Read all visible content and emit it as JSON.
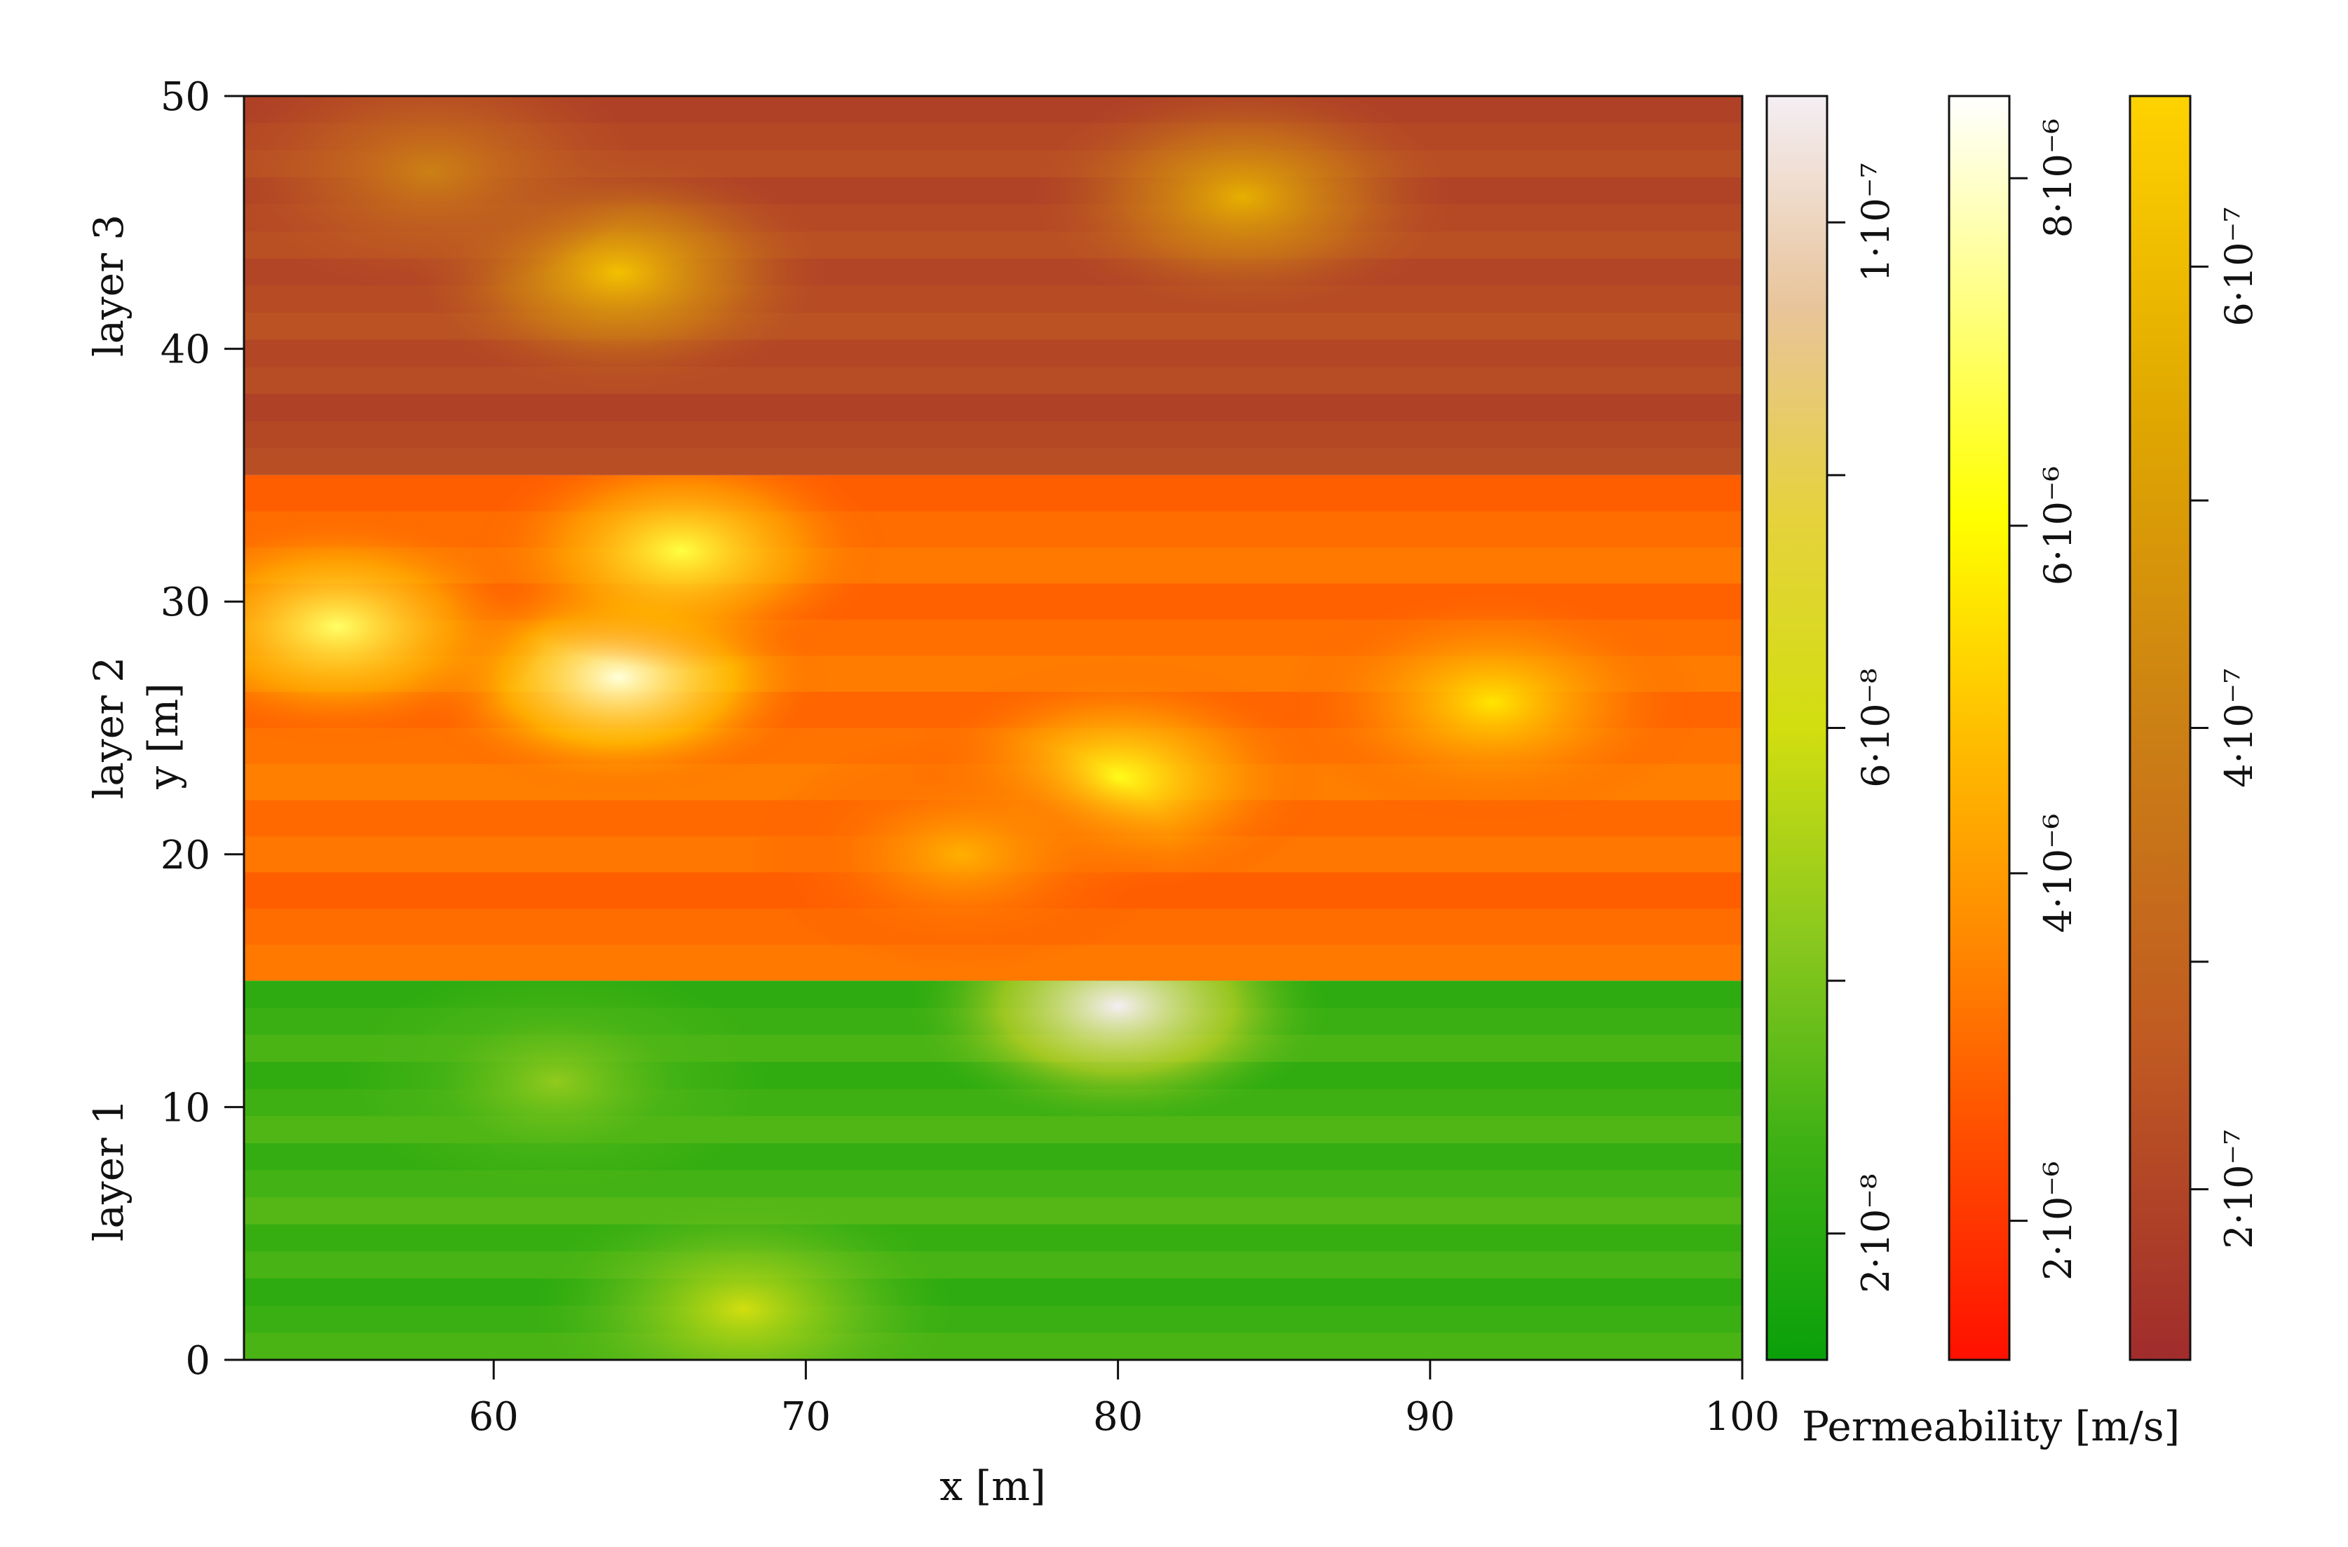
{
  "chart_data": {
    "type": "heatmap",
    "xlabel": "x [m]",
    "ylabel": "y [m]",
    "xlim": [
      52,
      100
    ],
    "ylim": [
      0,
      50
    ],
    "x_ticks": [
      {
        "value": 60,
        "label": "60"
      },
      {
        "value": 70,
        "label": "70"
      },
      {
        "value": 80,
        "label": "80"
      },
      {
        "value": 90,
        "label": "90"
      },
      {
        "value": 100,
        "label": "100"
      }
    ],
    "y_ticks": [
      {
        "value": 0,
        "label": "0"
      },
      {
        "value": 10,
        "label": "10"
      },
      {
        "value": 20,
        "label": "20"
      },
      {
        "value": 30,
        "label": "30"
      },
      {
        "value": 40,
        "label": "40"
      },
      {
        "value": 50,
        "label": "50"
      }
    ],
    "layers": [
      {
        "name": "layer 1",
        "y_range": [
          0,
          15
        ],
        "colormap": "green-yellow-white"
      },
      {
        "name": "layer 2",
        "y_range": [
          15,
          35
        ],
        "colormap": "red-orange-yellow-white"
      },
      {
        "name": "layer 3",
        "y_range": [
          35,
          50
        ],
        "colormap": "brown-gold"
      }
    ],
    "hotspots": [
      {
        "layer": "layer 1",
        "x": 80,
        "y": 14,
        "level": 1.0
      },
      {
        "layer": "layer 1",
        "x": 68,
        "y": 2,
        "level": 0.5
      },
      {
        "layer": "layer 1",
        "x": 62,
        "y": 11,
        "level": 0.35
      },
      {
        "layer": "layer 2",
        "x": 64,
        "y": 27,
        "level": 0.95
      },
      {
        "layer": "layer 2",
        "x": 55,
        "y": 29,
        "level": 0.8
      },
      {
        "layer": "layer 2",
        "x": 66,
        "y": 32,
        "level": 0.75
      },
      {
        "layer": "layer 2",
        "x": 80,
        "y": 23,
        "level": 0.7
      },
      {
        "layer": "layer 2",
        "x": 92,
        "y": 26,
        "level": 0.6
      },
      {
        "layer": "layer 2",
        "x": 75,
        "y": 20,
        "level": 0.45
      },
      {
        "layer": "layer 3",
        "x": 64,
        "y": 43,
        "level": 0.9
      },
      {
        "layer": "layer 3",
        "x": 84,
        "y": 46,
        "level": 0.8
      },
      {
        "layer": "layer 3",
        "x": 58,
        "y": 47,
        "level": 0.5
      }
    ],
    "legend_title": "Permeability [m/s]",
    "colorbars": [
      {
        "layer": "layer 1",
        "colors": [
          "#0aa00a",
          "#3cb014",
          "#8ac81e",
          "#d2de10",
          "#e6d23c",
          "#e8c49a",
          "#f4eef4"
        ],
        "ticks": [
          {
            "frac": 0.1,
            "label": "2·10⁻⁸"
          },
          {
            "frac": 0.3,
            "label": ""
          },
          {
            "frac": 0.5,
            "label": "6·10⁻⁸"
          },
          {
            "frac": 0.7,
            "label": ""
          },
          {
            "frac": 0.9,
            "label": "1·10⁻⁷"
          }
        ]
      },
      {
        "layer": "layer 2",
        "colors": [
          "#ff1000",
          "#ff4a00",
          "#ff8a00",
          "#ffc000",
          "#ffff00",
          "#ffff80",
          "#ffffff"
        ],
        "ticks": [
          {
            "frac": 0.11,
            "label": "2·10⁻⁶"
          },
          {
            "frac": 0.385,
            "label": "4·10⁻⁶"
          },
          {
            "frac": 0.66,
            "label": "6·10⁻⁶"
          },
          {
            "frac": 0.935,
            "label": "8·10⁻⁶"
          }
        ]
      },
      {
        "layer": "layer 3",
        "colors": [
          "#a02c2c",
          "#c05a22",
          "#cc8014",
          "#e0a800",
          "#ffd200"
        ],
        "ticks": [
          {
            "frac": 0.135,
            "label": "2·10⁻⁷"
          },
          {
            "frac": 0.315,
            "label": ""
          },
          {
            "frac": 0.5,
            "label": "4·10⁻⁷"
          },
          {
            "frac": 0.68,
            "label": ""
          },
          {
            "frac": 0.865,
            "label": "6·10⁻⁷"
          }
        ]
      }
    ]
  }
}
